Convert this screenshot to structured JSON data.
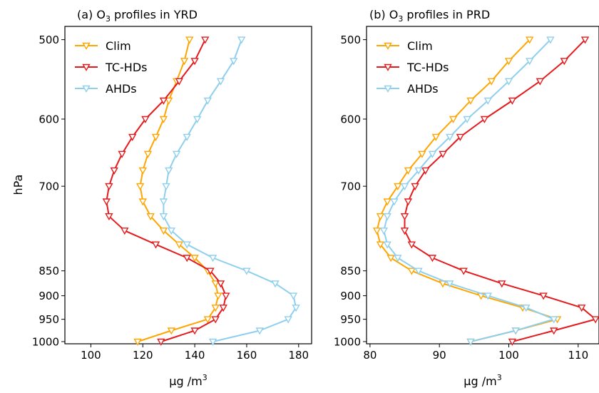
{
  "ylabel": "hPa",
  "chart_data": [
    {
      "type": "line",
      "title_prefix": "(a) O",
      "title_sub": "3",
      "title_suffix": " profiles in YRD",
      "xlabel_base": "μg /m",
      "xlabel_sup": "3",
      "ylabel": "hPa",
      "xlim": [
        90,
        185
      ],
      "ylim": [
        1005,
        485
      ],
      "xticks": [
        100,
        120,
        140,
        160,
        180
      ],
      "yticks": [
        500,
        600,
        700,
        850,
        900,
        950,
        1000
      ],
      "yscale": "log",
      "legend_location": "top-left",
      "y": [
        500,
        525,
        550,
        575,
        600,
        625,
        650,
        675,
        700,
        725,
        750,
        775,
        800,
        825,
        850,
        875,
        900,
        925,
        950,
        975,
        1000
      ],
      "series": [
        {
          "name": "Clim",
          "color": "#FFA500",
          "x": [
            138,
            136,
            133,
            130,
            128,
            125,
            122,
            120,
            119,
            120,
            123,
            128,
            134,
            140,
            145,
            148,
            149,
            148,
            145,
            131,
            118
          ]
        },
        {
          "name": "TC-HDs",
          "color": "#E41A1C",
          "x": [
            144,
            140,
            134,
            128,
            121,
            116,
            112,
            109,
            107,
            106,
            107,
            113,
            125,
            137,
            146,
            150,
            152,
            151,
            148,
            140,
            127
          ]
        },
        {
          "name": "AHDs",
          "color": "#8ECFEE",
          "x": [
            158,
            155,
            150,
            145,
            141,
            137,
            133,
            130,
            129,
            128,
            128,
            131,
            137,
            147,
            160,
            171,
            178,
            179,
            176,
            165,
            147
          ]
        }
      ]
    },
    {
      "type": "line",
      "title_prefix": "(b) O",
      "title_sub": "3",
      "title_suffix": " profiles in PRD",
      "xlabel_base": "μg /m",
      "xlabel_sup": "3",
      "ylabel": "",
      "xlim": [
        79.5,
        113
      ],
      "ylim": [
        1005,
        485
      ],
      "xticks": [
        80,
        90,
        100,
        110
      ],
      "yticks": [
        500,
        600,
        700,
        850,
        900,
        950,
        1000
      ],
      "yscale": "log",
      "legend_location": "top-left",
      "y": [
        500,
        525,
        550,
        575,
        600,
        625,
        650,
        675,
        700,
        725,
        750,
        775,
        800,
        825,
        850,
        875,
        900,
        925,
        950,
        975,
        1000
      ],
      "series": [
        {
          "name": "Clim",
          "color": "#FFA500",
          "x": [
            103,
            100,
            97.5,
            94.5,
            92,
            89.5,
            87.5,
            85.5,
            84,
            82.5,
            81.5,
            81,
            81.5,
            83,
            86,
            90.5,
            96,
            102,
            107,
            101,
            94.5
          ]
        },
        {
          "name": "TC-HDs",
          "color": "#E41A1C",
          "x": [
            111,
            108,
            104.5,
            100.5,
            96.5,
            93,
            90.5,
            88,
            86.5,
            85.5,
            85,
            85,
            86,
            89,
            93.5,
            99,
            105,
            110.5,
            112.5,
            106.5,
            100.5
          ]
        },
        {
          "name": "AHDs",
          "color": "#8ECFEE",
          "x": [
            106,
            103,
            100,
            97,
            94,
            91.5,
            89,
            87,
            85,
            83.5,
            82.5,
            82,
            82.5,
            84,
            87,
            91.5,
            97,
            102.5,
            106.5,
            101,
            94.5
          ]
        }
      ]
    }
  ]
}
